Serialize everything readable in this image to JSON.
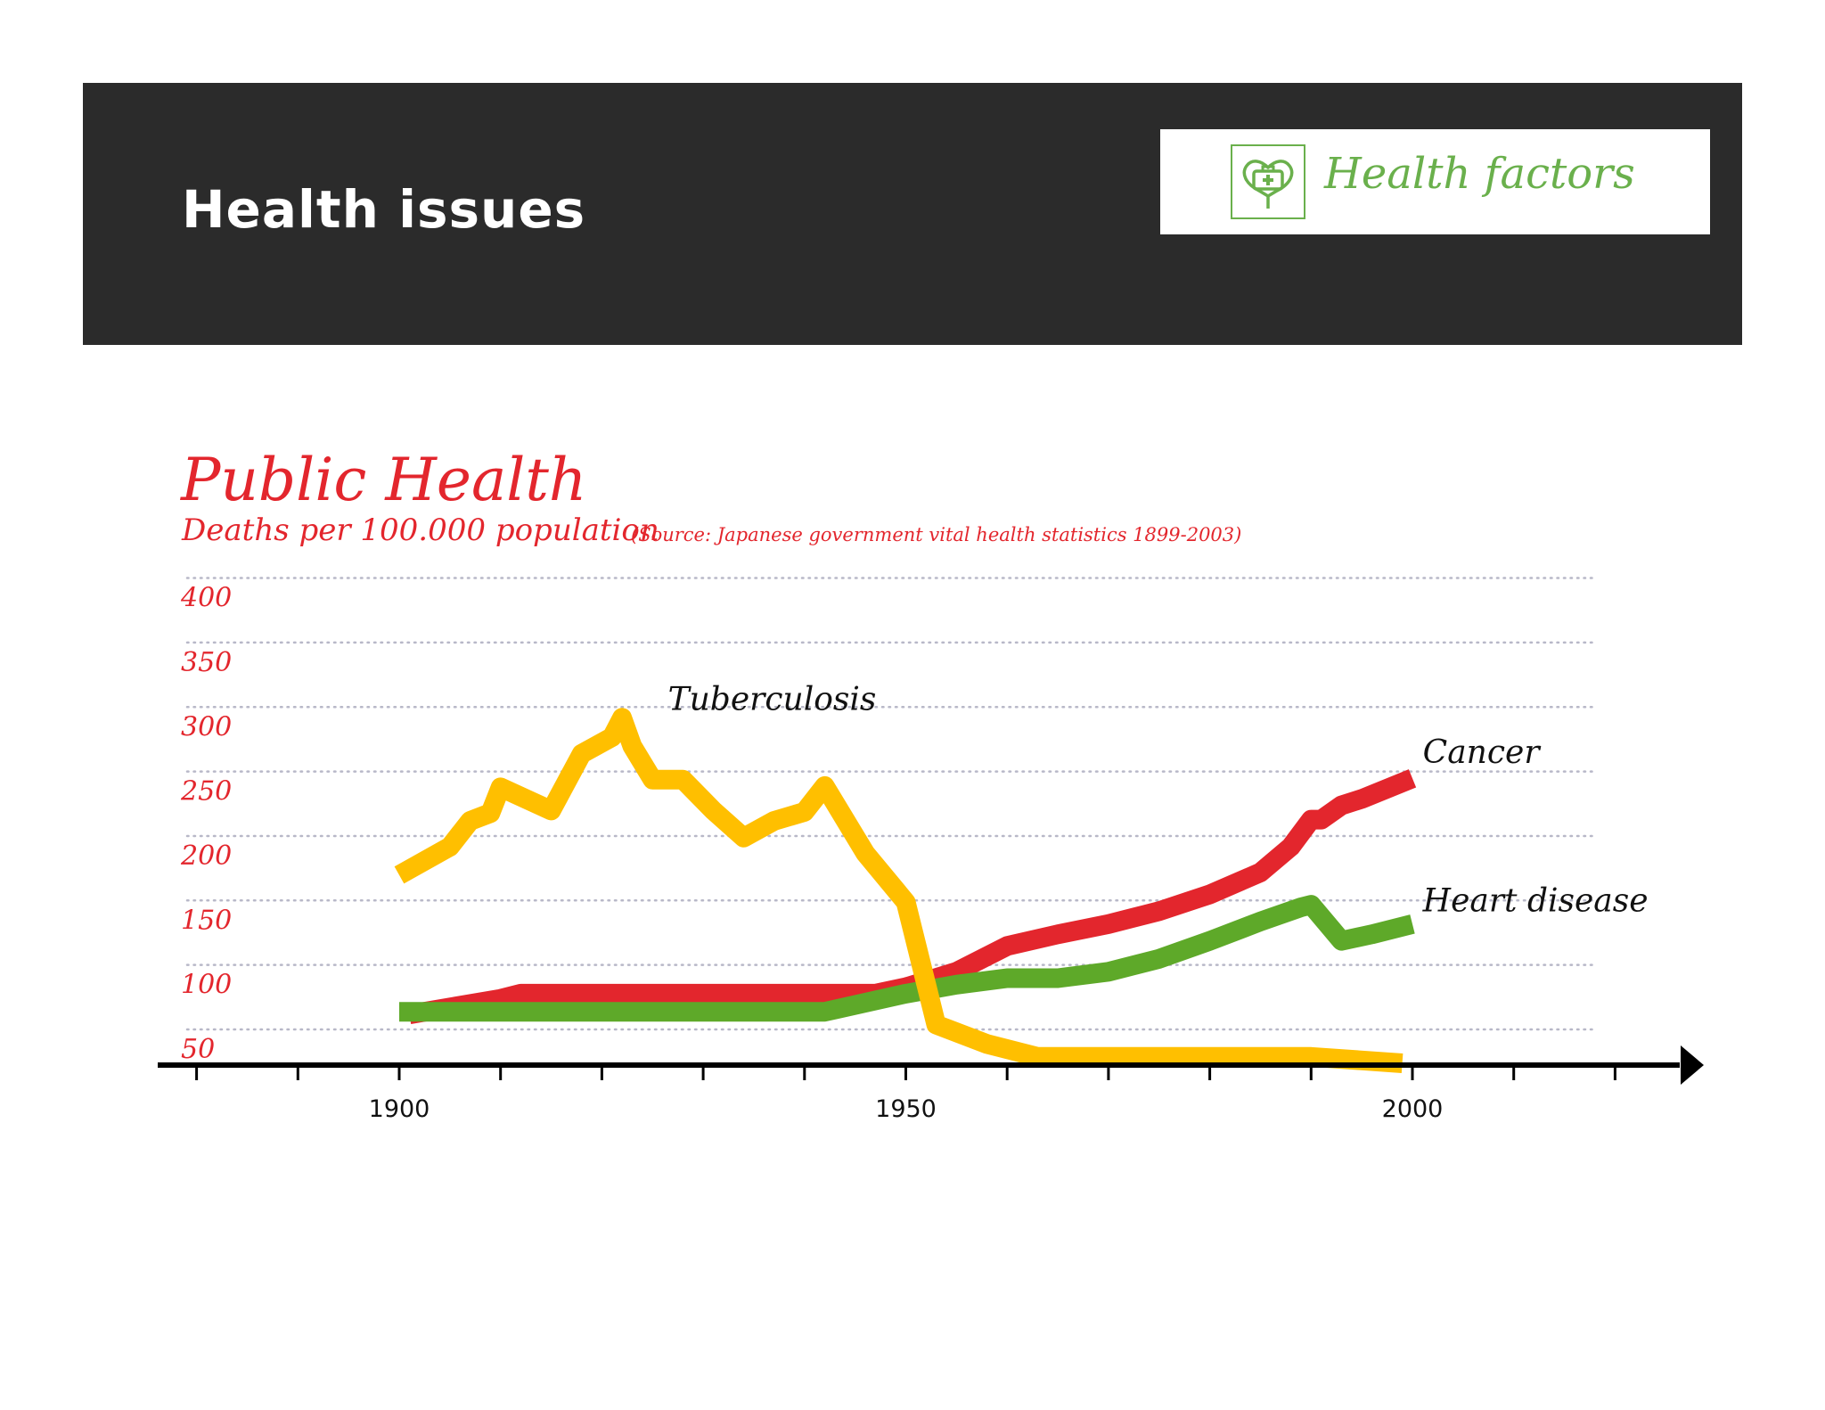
{
  "header": {
    "title": "Health issues",
    "brand_label": "Health factors",
    "brand_icon": "heart-medical-kit-icon",
    "background": "#2b2b2b",
    "brand_color": "#6ab04c"
  },
  "chart_data": {
    "type": "line",
    "title": "Public Health",
    "subtitle": "Deaths per 100.000 population",
    "source": "(Source: Japanese government vital health statistics 1899-2003)",
    "y_ticks": [
      "50",
      "100",
      "150",
      "200",
      "250",
      "300",
      "350",
      "400"
    ],
    "x_ticks": [
      "1900",
      "1950",
      "2000"
    ],
    "ylim": [
      50,
      400
    ],
    "xlim": [
      1880,
      2028
    ],
    "grid": "dotted horizontal",
    "series": [
      {
        "name": "Tuberculosis",
        "color": "#ffbf00",
        "x": [
          1900,
          1905,
          1907,
          1909,
          1910,
          1915,
          1918,
          1921,
          1922,
          1923,
          1925,
          1928,
          1931,
          1934,
          1937,
          1940,
          1942,
          1946,
          1950,
          1953,
          1958,
          1963,
          1970,
          1980,
          1990,
          1999
        ],
        "y": [
          178,
          200,
          220,
          226,
          246,
          228,
          272,
          285,
          300,
          278,
          252,
          252,
          228,
          207,
          220,
          227,
          247,
          195,
          157,
          62,
          47,
          37,
          37,
          37,
          37,
          32
        ]
      },
      {
        "name": "Cancer",
        "color": "#e3262d",
        "x": [
          1901,
          1910,
          1912,
          1920,
          1930,
          1940,
          1947,
          1950,
          1955,
          1960,
          1965,
          1970,
          1975,
          1980,
          1985,
          1988,
          1990,
          1991,
          1993,
          1995,
          2000
        ],
        "y": [
          70,
          82,
          86,
          86,
          86,
          86,
          86,
          91,
          103,
          123,
          132,
          140,
          150,
          163,
          180,
          200,
          221,
          221,
          232,
          237,
          253
        ]
      },
      {
        "name": "Heart disease",
        "color": "#5ea929",
        "x": [
          1900,
          1910,
          1920,
          1930,
          1942,
          1950,
          1955,
          1960,
          1965,
          1970,
          1975,
          1980,
          1985,
          1989,
          1990,
          1993,
          1996,
          2000
        ],
        "y": [
          72,
          72,
          72,
          72,
          72,
          86,
          93,
          98,
          98,
          103,
          113,
          127,
          142,
          153,
          155,
          127,
          132,
          140
        ]
      }
    ]
  }
}
